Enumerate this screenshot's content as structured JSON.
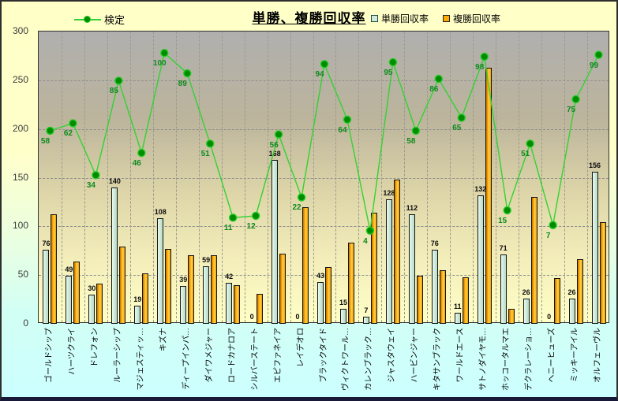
{
  "header": {
    "title": "単勝、複勝回収率",
    "line_legend_label": "検定",
    "bar_legend_labels": [
      "単勝回収率",
      "複勝回収率"
    ],
    "watermark": "©Caniの競馬データ研究室"
  },
  "y_axis": {
    "ticks": [
      0,
      50,
      100,
      150,
      200,
      250,
      300
    ],
    "max": 300
  },
  "colors": {
    "tansho_fill": "#cfeada",
    "fukusho_fill": "#ffaa00",
    "line": "#33d233",
    "marker_fill": "#008c00",
    "marker_ring": "#22cc22",
    "green_label": "#0e8a1e",
    "bg_top": "#ffffc8",
    "bg_bottom": "#ccffff",
    "plot_bg_top": "#b0afae",
    "plot_bg_bottom": "#ffffc6"
  },
  "chart_data": {
    "type": "bar",
    "title": "単勝、複勝回収率",
    "xlabel": "",
    "ylabel": "",
    "ylim": [
      0,
      300
    ],
    "grid": true,
    "legend_position": "top",
    "categories": [
      "ゴールドシップ",
      "ハーツクライ",
      "ドレフォン",
      "ルーラーシップ",
      "マジェスティッ…",
      "キズナ",
      "ディープインパ…",
      "ダイワメジャー",
      "ロードカナロア",
      "シルバーステート",
      "エピファネイア",
      "レイデオロ",
      "ブラックタイド",
      "ヴィクトワール…",
      "カレンブラック…",
      "ジャスタウェイ",
      "ハービンジャー",
      "キタサンブラック",
      "ワールドエース",
      "サトノダイヤモ…",
      "ホッコータルマエ",
      "デクラレーショ…",
      "ヘニーヒューズ",
      "ミッキーアイル",
      "オルフェーヴル"
    ],
    "series": [
      {
        "name": "単勝回収率",
        "type": "bar",
        "labeled": true,
        "values": [
          76,
          49,
          30,
          140,
          19,
          108,
          39,
          59,
          42,
          0,
          168,
          0,
          43,
          15,
          7,
          128,
          112,
          76,
          11,
          132,
          71,
          26,
          0,
          26,
          156
        ]
      },
      {
        "name": "複勝回収率",
        "type": "bar",
        "labeled": false,
        "values": [
          112,
          64,
          41,
          79,
          52,
          77,
          70,
          70,
          40,
          31,
          72,
          120,
          58,
          83,
          114,
          148,
          49,
          55,
          48,
          263,
          15,
          130,
          47,
          66,
          104
        ]
      },
      {
        "name": "検定",
        "type": "line",
        "labeled": true,
        "values": [
          58,
          62,
          34,
          85,
          46,
          100,
          89,
          51,
          11,
          12,
          56,
          22,
          94,
          64,
          4,
          95,
          58,
          86,
          65,
          98,
          15,
          51,
          7,
          75,
          99
        ],
        "secondary_axis_transform": {
          "scale": 1.9,
          "offset": 88
        }
      }
    ]
  }
}
